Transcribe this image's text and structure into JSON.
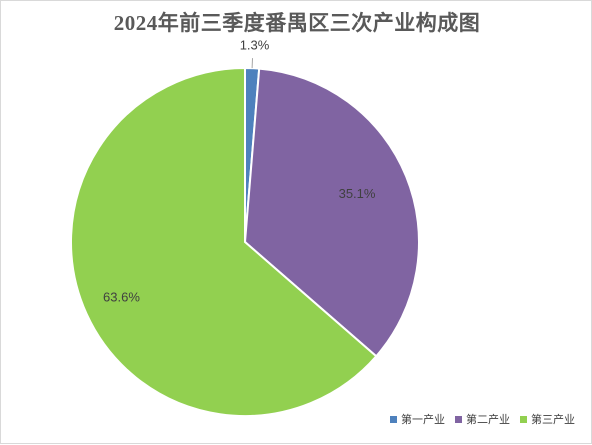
{
  "chart_data": {
    "type": "pie",
    "title": "2024年前三季度番禺区三次产业构成图",
    "categories": [
      "第一产业",
      "第二产业",
      "第三产业"
    ],
    "values": [
      1.3,
      35.1,
      63.6
    ],
    "labels": [
      "1.3%",
      "35.1%",
      "63.6%"
    ],
    "colors": [
      "#4e81bd",
      "#8064a2",
      "#92d050"
    ],
    "start_angle": "12 o'clock, clockwise",
    "legend_position": "bottom-right"
  }
}
